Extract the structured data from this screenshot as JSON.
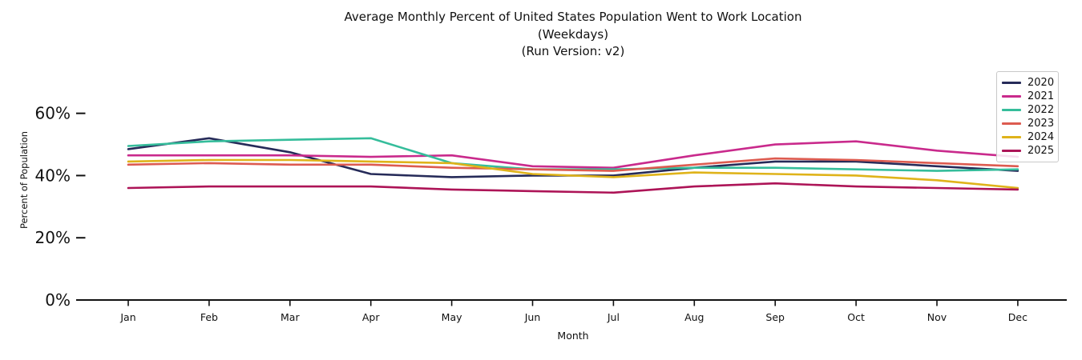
{
  "chart_data": {
    "type": "line",
    "title": "Average Monthly Percent of United States Population Went to Work Location",
    "subtitle": "(Weekdays)",
    "run_version_line": "(Run Version: v2)",
    "xlabel": "Month",
    "ylabel": "Percent of Population",
    "categories": [
      "Jan",
      "Feb",
      "Mar",
      "Apr",
      "May",
      "Jun",
      "Jul",
      "Aug",
      "Sep",
      "Oct",
      "Nov",
      "Dec"
    ],
    "series": [
      {
        "name": "2020",
        "color": "#262b59",
        "values": [
          48.5,
          52,
          47.5,
          40.5,
          39.5,
          40,
          40,
          42.5,
          44.5,
          44.5,
          43,
          41.5
        ]
      },
      {
        "name": "2021",
        "color": "#c92a8c",
        "values": [
          46.5,
          46.5,
          46.5,
          46,
          46.5,
          43,
          42.5,
          46.5,
          50,
          51,
          48,
          46
        ]
      },
      {
        "name": "2022",
        "color": "#35bd9b",
        "values": [
          49.5,
          51,
          51.5,
          52,
          44,
          42,
          42,
          42.5,
          42.5,
          42,
          41.5,
          42
        ]
      },
      {
        "name": "2023",
        "color": "#dd5b50",
        "values": [
          43.5,
          44,
          43.5,
          43.5,
          42.5,
          42,
          41.5,
          43.5,
          45.5,
          45,
          44,
          43
        ]
      },
      {
        "name": "2024",
        "color": "#dfb31a",
        "values": [
          44.5,
          45,
          45,
          44.5,
          44,
          40.5,
          39.5,
          41,
          40.5,
          40,
          38.5,
          36
        ]
      },
      {
        "name": "2025",
        "color": "#ad1457",
        "values": [
          36,
          36.5,
          36.5,
          36.5,
          35.5,
          35,
          34.5,
          36.5,
          37.5,
          36.5,
          36,
          35.5
        ]
      }
    ],
    "ylim": [
      0,
      65
    ],
    "yticks": [
      0,
      20,
      40,
      60
    ],
    "ytick_labels": [
      "0%",
      "20%",
      "40%",
      "60%"
    ],
    "grid": false,
    "legend_position": "upper right",
    "axis_color": "#111111",
    "line_width": 2.6
  }
}
